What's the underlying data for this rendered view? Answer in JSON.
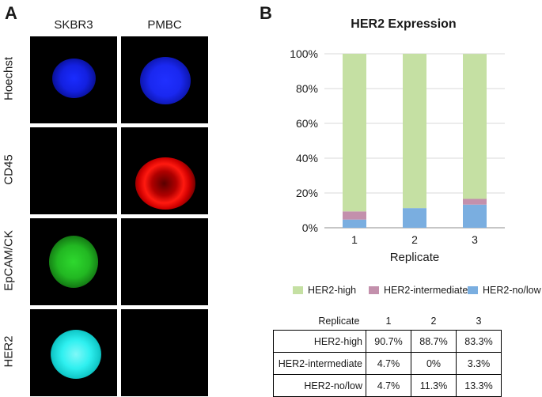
{
  "panel_a": {
    "letter": "A",
    "columns": [
      "SKBR3",
      "PMBC"
    ],
    "rows": [
      "Hoechst",
      "CD45",
      "EpCAM/CK",
      "HER2"
    ]
  },
  "panel_b": {
    "letter": "B",
    "title": "HER2 Expression",
    "xlabel": "Replicate",
    "legend": [
      "HER2-high",
      "HER2-intermediate",
      "HER2-no/low"
    ],
    "colors": {
      "high": "#c5e0a3",
      "intermediate": "#c390ac",
      "nolow": "#7aaee0",
      "grid": "#d9d9d9",
      "axis": "#8c8c8c"
    },
    "table": {
      "header": [
        "Replicate",
        "1",
        "2",
        "3"
      ],
      "rows": [
        {
          "label": "HER2-high",
          "values": [
            "90.7%",
            "88.7%",
            "83.3%"
          ]
        },
        {
          "label": "HER2-intermediate",
          "values": [
            "4.7%",
            "0%",
            "3.3%"
          ]
        },
        {
          "label": "HER2-no/low",
          "values": [
            "4.7%",
            "11.3%",
            "13.3%"
          ]
        }
      ]
    }
  },
  "chart_data": {
    "type": "bar",
    "stacked": true,
    "title": "HER2 Expression",
    "xlabel": "Replicate",
    "ylabel": "",
    "categories": [
      "1",
      "2",
      "3"
    ],
    "yticks": [
      "0%",
      "20%",
      "40%",
      "60%",
      "80%",
      "100%"
    ],
    "ylim": [
      0,
      100
    ],
    "grid": true,
    "legend_position": "bottom",
    "series": [
      {
        "name": "HER2-no/low",
        "values": [
          4.7,
          11.3,
          13.3
        ]
      },
      {
        "name": "HER2-intermediate",
        "values": [
          4.7,
          0,
          3.3
        ]
      },
      {
        "name": "HER2-high",
        "values": [
          90.7,
          88.7,
          83.3
        ]
      }
    ]
  }
}
